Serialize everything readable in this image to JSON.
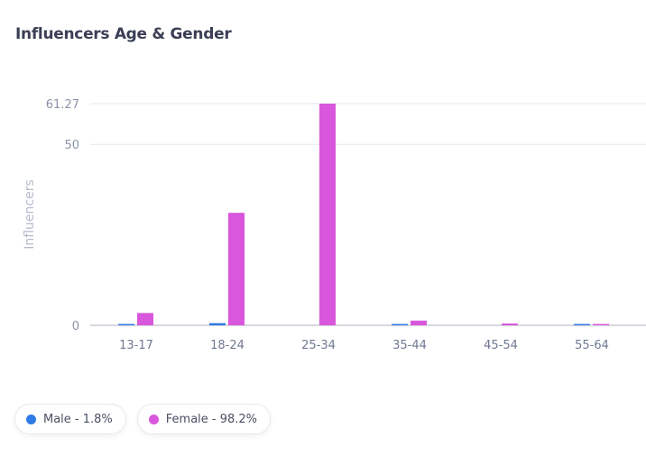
{
  "title": "Influencers Age & Gender",
  "chart_data": {
    "type": "bar",
    "ylabel": "Influencers",
    "xlabel": "",
    "ylim": [
      0,
      61.27
    ],
    "yticks": [
      "0",
      "50",
      "61.27"
    ],
    "ytick_values": [
      0,
      50,
      61.27
    ],
    "grid": true,
    "categories": [
      "13-17",
      "18-24",
      "25-34",
      "35-44",
      "45-54",
      "55-64"
    ],
    "series": [
      {
        "name": "Male",
        "color": "#2f7ae5",
        "values": [
          0.2,
          0.6,
          0,
          0.2,
          0,
          0.2
        ]
      },
      {
        "name": "Female",
        "color": "#d957dc",
        "values": [
          3.4,
          31.1,
          61.27,
          1.3,
          0.5,
          0.2
        ]
      }
    ],
    "legend_position": "bottom-left"
  },
  "legend": [
    {
      "label": "Male - 1.8%",
      "color": "#2f7ae5"
    },
    {
      "label": "Female - 98.2%",
      "color": "#d957dc"
    }
  ]
}
